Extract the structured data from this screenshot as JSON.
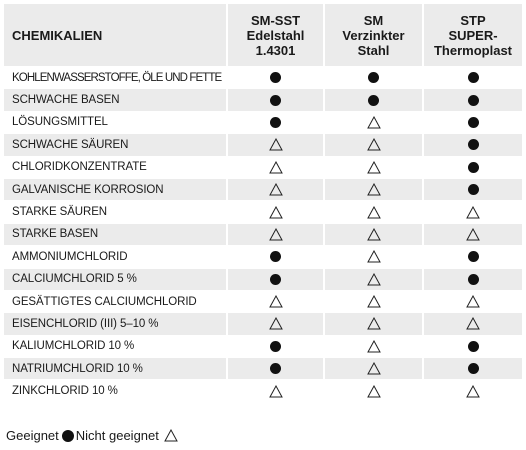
{
  "header": {
    "col0": "CHEMIKALIEN",
    "col1": [
      "SM-SST",
      "Edelstahl",
      "1.4301"
    ],
    "col2": [
      "SM",
      "Verzinkter",
      "Stahl"
    ],
    "col3": [
      "STP",
      "SUPER-",
      "Thermoplast"
    ]
  },
  "rows": [
    {
      "name": "KOHLENWASSERSTOFFE, ÖLE UND FETTE",
      "values": [
        "dot",
        "dot",
        "dot"
      ]
    },
    {
      "name": "SCHWACHE BASEN",
      "values": [
        "dot",
        "dot",
        "dot"
      ]
    },
    {
      "name": "LÖSUNGSMITTEL",
      "values": [
        "dot",
        "triangle",
        "dot"
      ]
    },
    {
      "name": "SCHWACHE SÄUREN",
      "values": [
        "triangle",
        "triangle",
        "dot"
      ]
    },
    {
      "name": "CHLORIDKONZENTRATE",
      "values": [
        "triangle",
        "triangle",
        "dot"
      ]
    },
    {
      "name": "GALVANISCHE KORROSION",
      "values": [
        "triangle",
        "triangle",
        "dot"
      ]
    },
    {
      "name": "STARKE SÄUREN",
      "values": [
        "triangle",
        "triangle",
        "triangle"
      ]
    },
    {
      "name": "STARKE BASEN",
      "values": [
        "triangle",
        "triangle",
        "triangle"
      ]
    },
    {
      "name": "AMMONIUMCHLORID",
      "values": [
        "dot",
        "triangle",
        "dot"
      ]
    },
    {
      "name": "CALCIUMCHLORID 5 %",
      "values": [
        "dot",
        "triangle",
        "dot"
      ]
    },
    {
      "name": "GESÄTTIGTES CALCIUMCHLORID",
      "values": [
        "triangle",
        "triangle",
        "triangle"
      ]
    },
    {
      "name": "EISENCHLORID (III) 5–10 %",
      "values": [
        "triangle",
        "triangle",
        "triangle"
      ]
    },
    {
      "name": "KALIUMCHLORID 10 %",
      "values": [
        "dot",
        "triangle",
        "dot"
      ]
    },
    {
      "name": "NATRIUMCHLORID 10 %",
      "values": [
        "dot",
        "triangle",
        "dot"
      ]
    },
    {
      "name": "ZINKCHLORID 10 %",
      "values": [
        "triangle",
        "triangle",
        "triangle"
      ]
    }
  ],
  "legend": {
    "suitable_label": "Geeignet",
    "unsuitable_label": "Nicht geeignet"
  },
  "symbols": {
    "dot": "filled-circle-icon",
    "triangle": "outline-triangle-icon"
  }
}
